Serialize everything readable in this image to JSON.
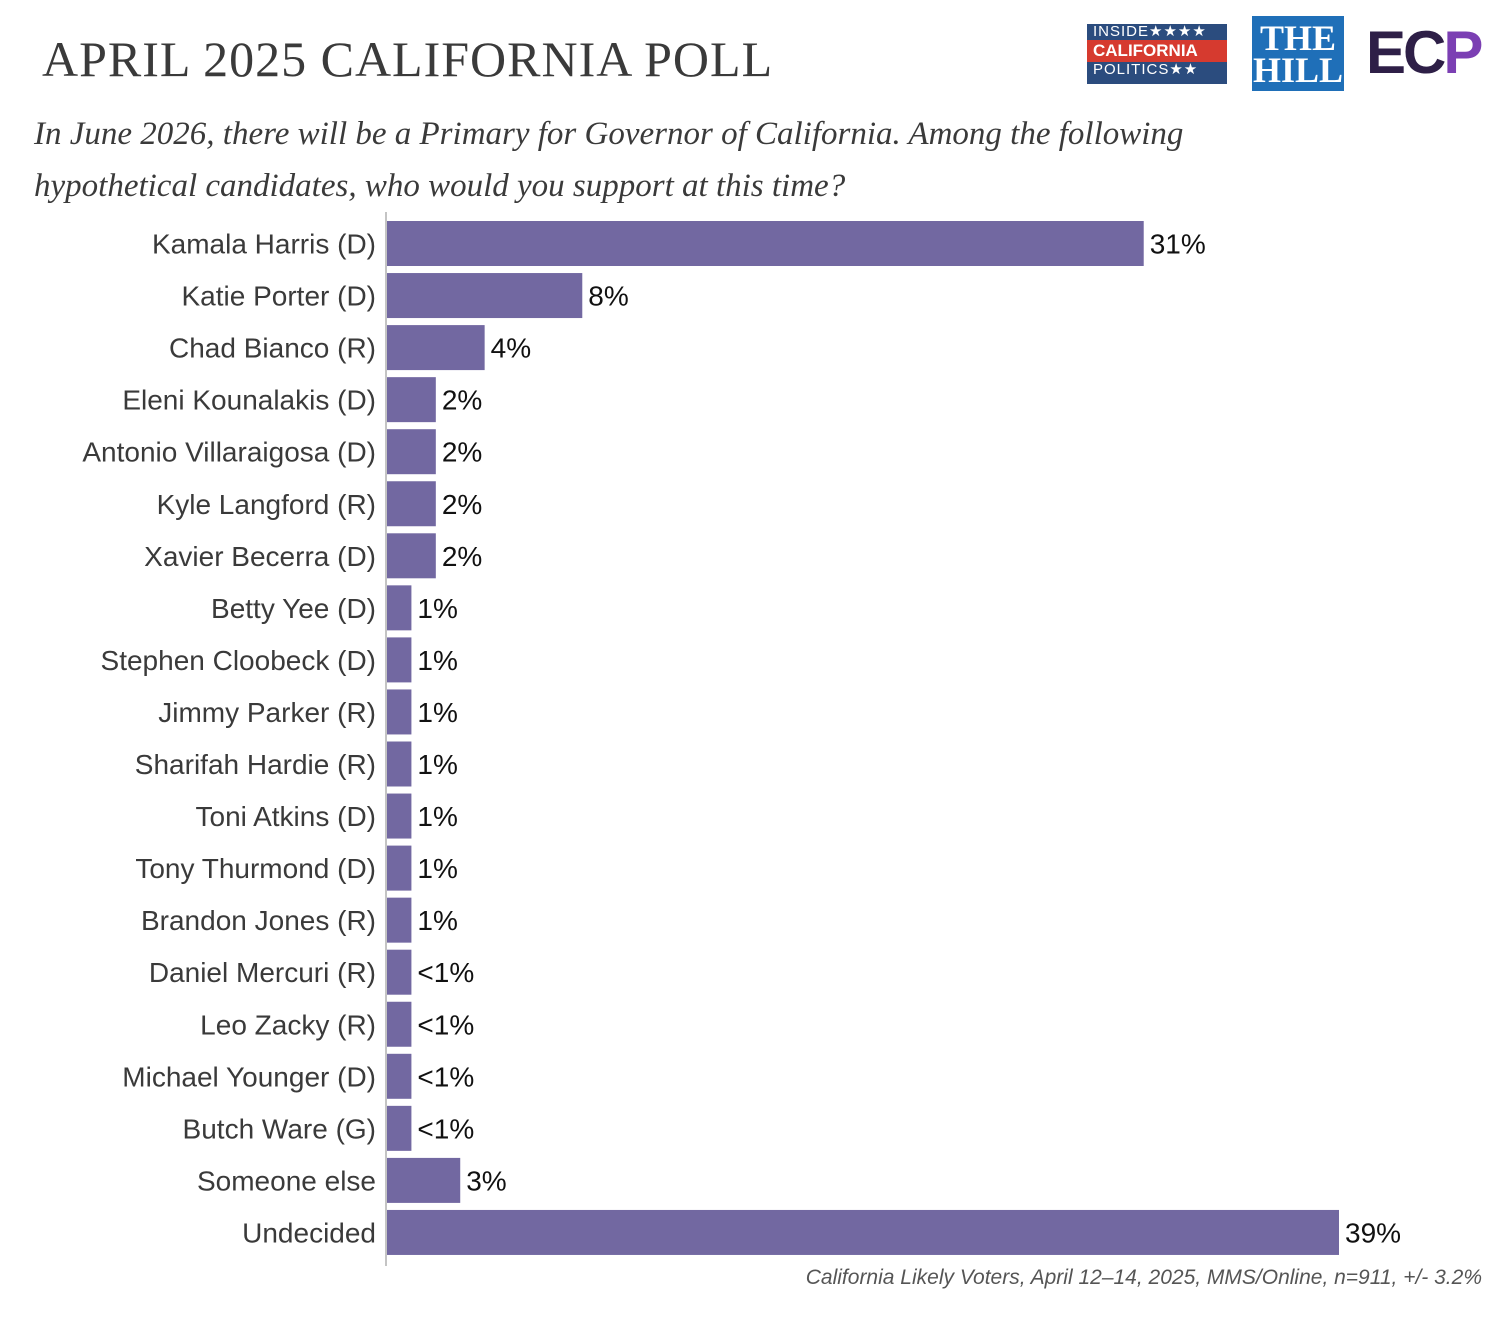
{
  "header": {
    "title": "APRIL 2025 CALIFORNIA POLL",
    "subtitle": "In June 2026, there will be a Primary for Governor of California. Among the following hypothetical candidates, who would you support at this time?"
  },
  "logos": {
    "icp": {
      "line1": "INSIDE★★★★",
      "line2": "CALIFORNIA",
      "line3": "POLITICS★★"
    },
    "thehill": {
      "line1": "THE",
      "line2": "HILL"
    },
    "ecp": {
      "text": "EC",
      "accent": "P"
    }
  },
  "footnote": "California Likely Voters, April 12–14, 2025, MMS/Online, n=911, +/- 3.2%",
  "colors": {
    "bar": "#7268a1",
    "axis": "#888888",
    "text": "#3a3a3a"
  },
  "chart_data": {
    "type": "bar",
    "orientation": "horizontal",
    "categories": [
      "Kamala Harris (D)",
      "Katie Porter (D)",
      "Chad Bianco (R)",
      "Eleni Kounalakis (D)",
      "Antonio Villaraigosa (D)",
      "Kyle Langford (R)",
      "Xavier Becerra (D)",
      "Betty Yee (D)",
      "Stephen Cloobeck (D)",
      "Jimmy Parker (R)",
      "Sharifah Hardie (R)",
      "Toni Atkins (D)",
      "Tony Thurmond (D)",
      "Brandon Jones (R)",
      "Daniel Mercuri (R)",
      "Leo Zacky (R)",
      "Michael Younger (D)",
      "Butch Ware (G)",
      "Someone else",
      "Undecided"
    ],
    "values": [
      31,
      8,
      4,
      2,
      2,
      2,
      2,
      1,
      1,
      1,
      1,
      1,
      1,
      1,
      1,
      1,
      1,
      1,
      3,
      39
    ],
    "value_labels": [
      "31%",
      "8%",
      "4%",
      "2%",
      "2%",
      "2%",
      "2%",
      "1%",
      "1%",
      "1%",
      "1%",
      "1%",
      "1%",
      "1%",
      "<1%",
      "<1%",
      "<1%",
      "<1%",
      "3%",
      "39%"
    ],
    "xlim": [
      0,
      39
    ],
    "grid": false,
    "legend": "none"
  }
}
